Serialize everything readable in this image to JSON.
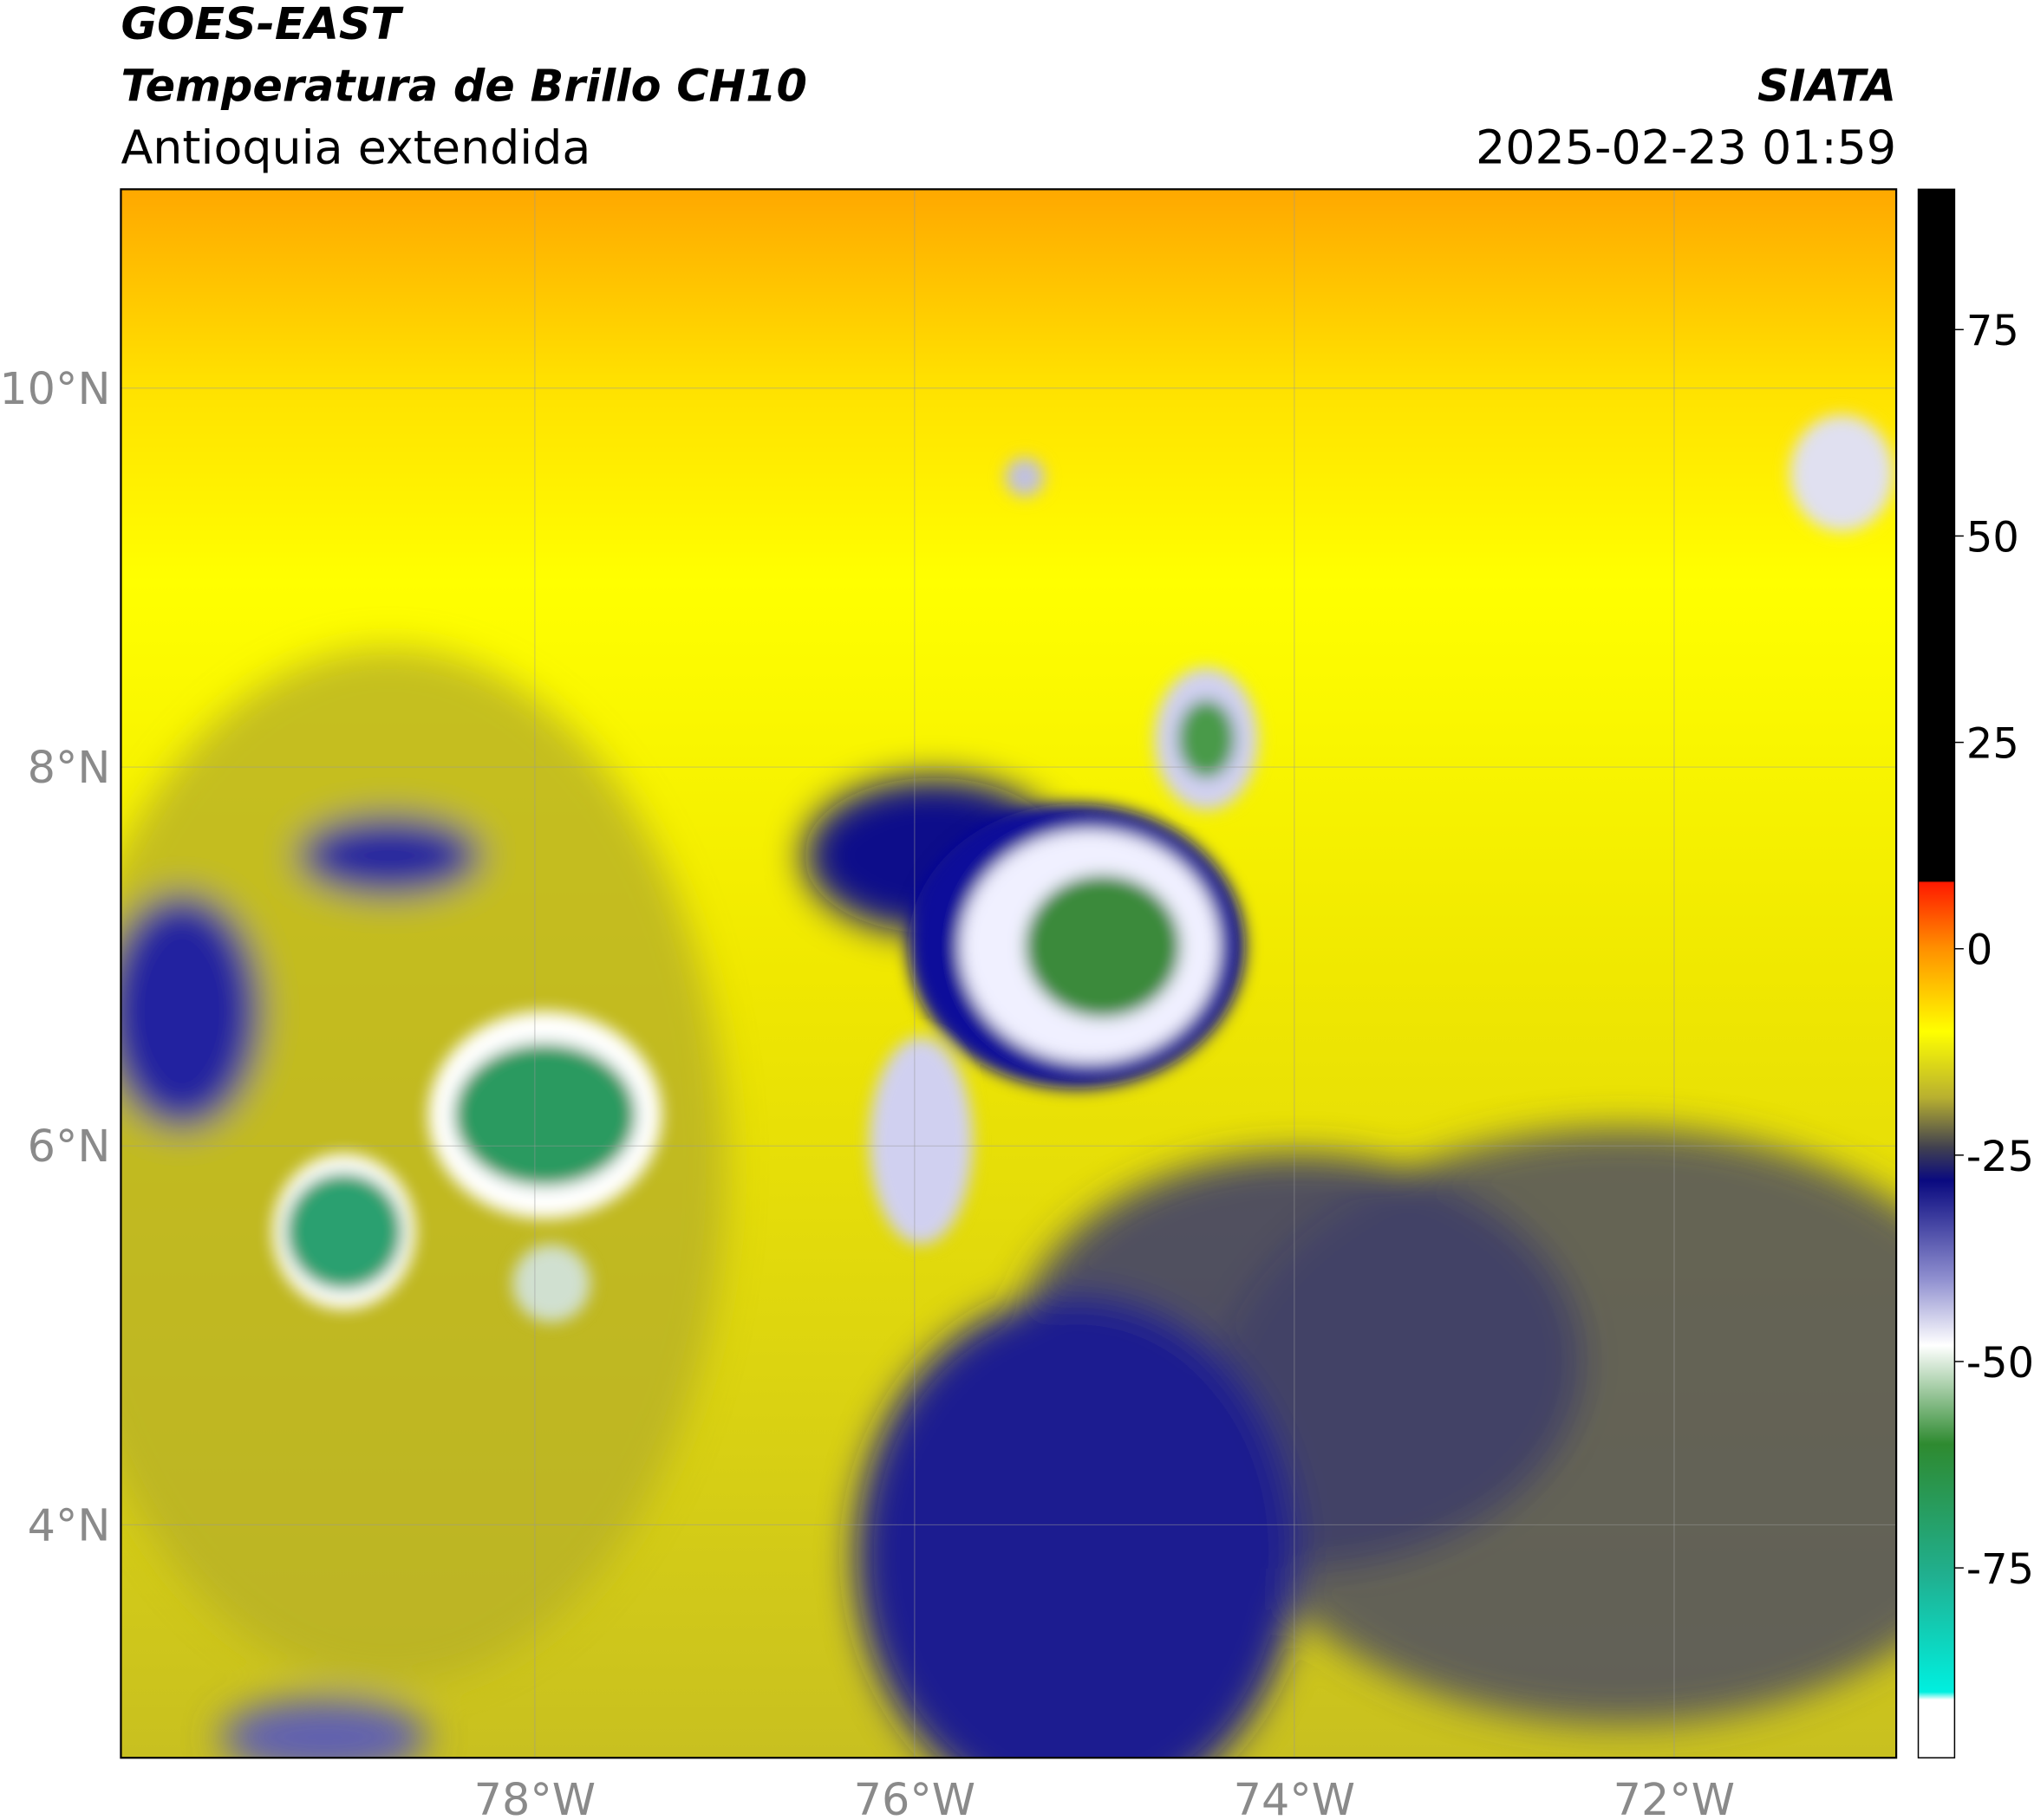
{
  "header": {
    "satellite": "GOES-EAST",
    "product": "Temperatura de Brillo CH10",
    "region": "Antioquia extendida",
    "agency": "SIATA",
    "datetime": "2025-02-23 01:59"
  },
  "map": {
    "xlim": [
      -80.18,
      -70.83
    ],
    "ylim": [
      2.77,
      11.05
    ],
    "xticks": [
      {
        "value": -78,
        "label": "78°W"
      },
      {
        "value": -76,
        "label": "76°W"
      },
      {
        "value": -74,
        "label": "74°W"
      },
      {
        "value": -72,
        "label": "72°W"
      }
    ],
    "yticks": [
      {
        "value": 10,
        "label": "10°N"
      },
      {
        "value": 8,
        "label": "8°N"
      },
      {
        "value": 6,
        "label": "6°N"
      },
      {
        "value": 4,
        "label": "4°N"
      }
    ]
  },
  "colorbar": {
    "lim": [
      -98,
      92
    ],
    "ticks": [
      75,
      50,
      25,
      0,
      -25,
      -50,
      -75
    ]
  }
}
